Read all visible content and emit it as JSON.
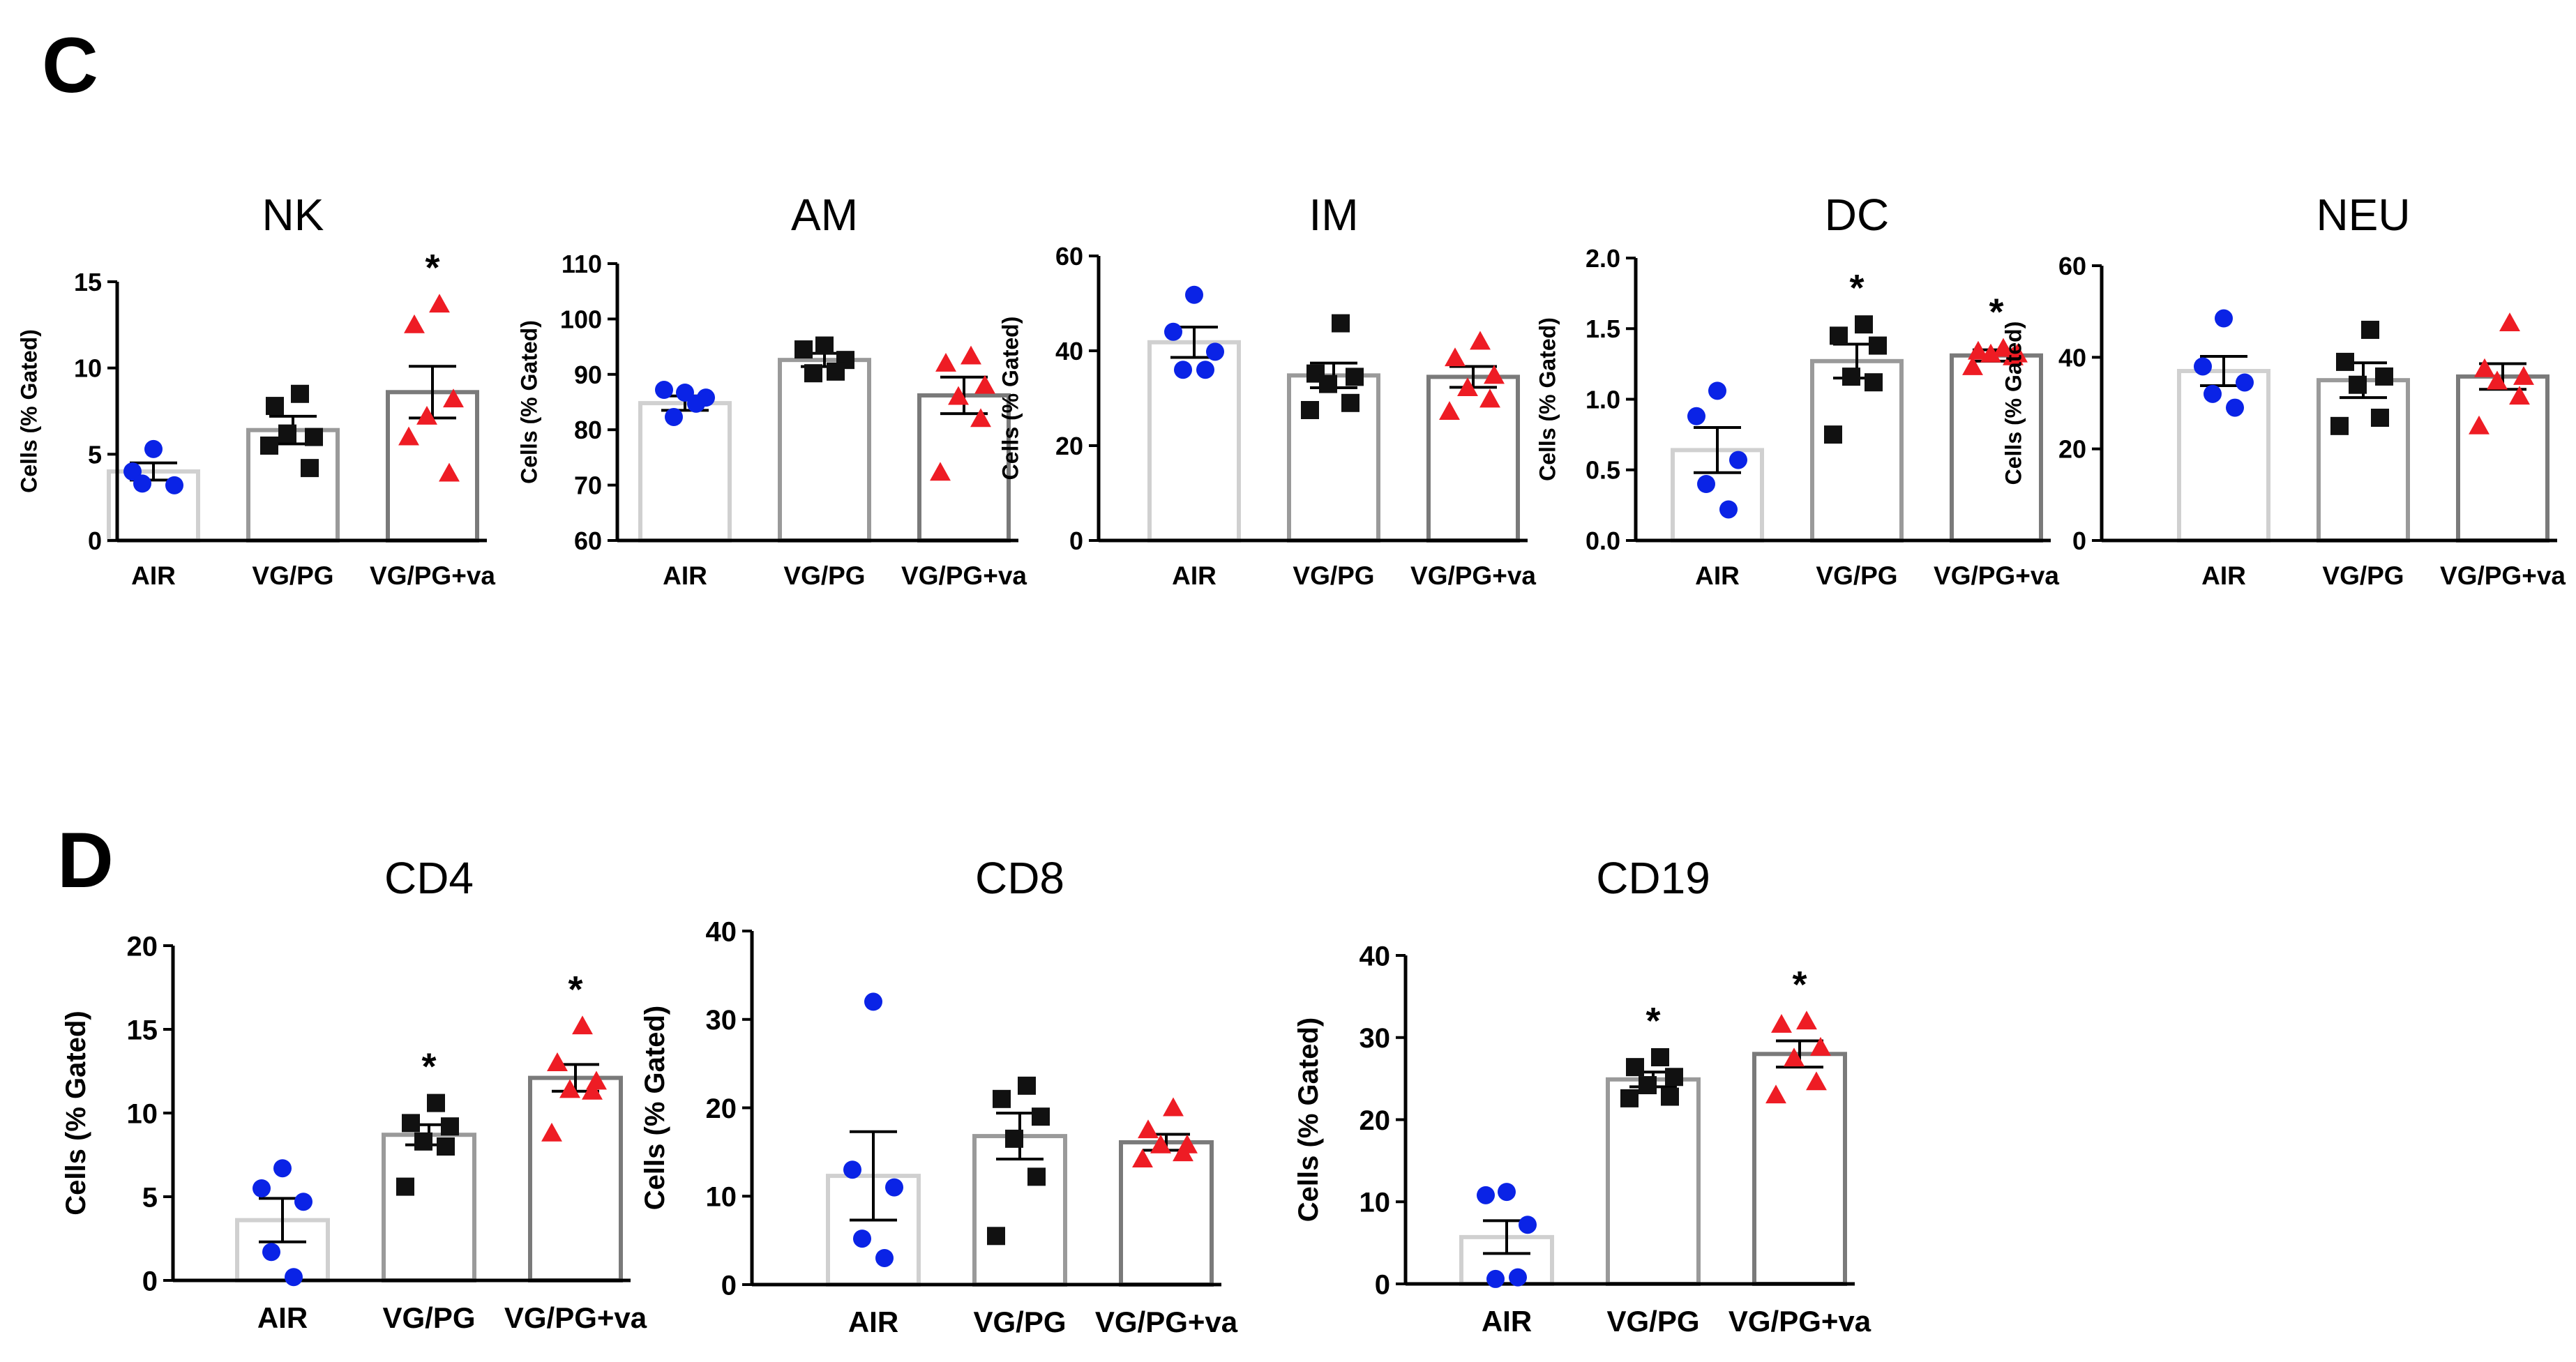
{
  "panels": [
    {
      "letter": "C"
    },
    {
      "letter": "D"
    }
  ],
  "chart_data": [
    {
      "panel": "C",
      "type": "bar",
      "title": "NK",
      "ylabel": "Cells (% Gated)",
      "categories": [
        "AIR",
        "VG/PG",
        "VG/PG+va"
      ],
      "ylim": [
        0,
        15
      ],
      "yticks": [
        0,
        5,
        10,
        15
      ],
      "means": [
        4.0,
        6.4,
        8.6
      ],
      "sem": [
        0.5,
        0.8,
        1.5
      ],
      "points": [
        [
          5.3,
          4.0,
          3.2,
          3.3
        ],
        [
          8.5,
          7.8,
          6.0,
          6.2,
          4.2,
          5.5
        ],
        [
          13.7,
          12.5,
          8.2,
          7.2,
          3.9,
          6.0
        ]
      ],
      "significance": [
        "",
        "",
        "*"
      ]
    },
    {
      "panel": "C",
      "type": "bar",
      "title": "AM",
      "ylabel": "Cells (% Gated)",
      "categories": [
        "AIR",
        "VG/PG",
        "VG/PG+va"
      ],
      "ylim": [
        60,
        110
      ],
      "yticks": [
        60,
        70,
        80,
        90,
        100,
        110
      ],
      "means": [
        84.8,
        92.6,
        86.2
      ],
      "sem": [
        1.3,
        1.2,
        3.3
      ],
      "points": [
        [
          86.7,
          87.2,
          85.8,
          82.3,
          84.7
        ],
        [
          95.2,
          94.5,
          92.6,
          90.2,
          90.5
        ],
        [
          93.3,
          92.0,
          88.0,
          86.0,
          82.0,
          72.3
        ]
      ],
      "significance": [
        "",
        "",
        ""
      ]
    },
    {
      "panel": "C",
      "type": "bar",
      "title": "IM",
      "ylabel": "Cells (% Gated)",
      "categories": [
        "AIR",
        "VG/PG",
        "VG/PG+va"
      ],
      "ylim": [
        0,
        60
      ],
      "yticks": [
        0,
        20,
        40,
        60
      ],
      "means": [
        41.8,
        34.8,
        34.5
      ],
      "sem": [
        3.2,
        2.6,
        2.2
      ],
      "points": [
        [
          51.8,
          44.0,
          39.8,
          36.0,
          36.0
        ],
        [
          45.8,
          35.2,
          34.5,
          33.0,
          29.0,
          27.5
        ],
        [
          42.0,
          38.5,
          34.8,
          32.2,
          29.8,
          27.2
        ]
      ],
      "significance": [
        "",
        "",
        ""
      ]
    },
    {
      "panel": "C",
      "type": "bar",
      "title": "DC",
      "ylabel": "Cells (% Gated)",
      "categories": [
        "AIR",
        "VG/PG",
        "VG/PG+va"
      ],
      "ylim": [
        0,
        2.0
      ],
      "yticks": [
        0.0,
        0.5,
        1.0,
        1.5,
        2.0
      ],
      "means": [
        0.64,
        1.27,
        1.31
      ],
      "sem": [
        0.16,
        0.12,
        0.04
      ],
      "points": [
        [
          1.06,
          0.88,
          0.57,
          0.4,
          0.22
        ],
        [
          1.53,
          1.45,
          1.38,
          1.16,
          1.12,
          0.75
        ],
        [
          1.36,
          1.34,
          1.32,
          1.32,
          1.3,
          1.23
        ]
      ],
      "significance": [
        "",
        "*",
        "*"
      ]
    },
    {
      "panel": "C",
      "type": "bar",
      "title": "NEU",
      "ylabel": "Cells (% Gated)",
      "categories": [
        "AIR",
        "VG/PG",
        "VG/PG+va"
      ],
      "ylim": [
        0,
        60
      ],
      "yticks": [
        0,
        20,
        40,
        60
      ],
      "means": [
        37.0,
        35.0,
        35.8
      ],
      "sem": [
        3.2,
        3.8,
        2.8
      ],
      "points": [
        [
          48.5,
          38.0,
          34.5,
          32.0,
          29.0
        ],
        [
          46.0,
          39.0,
          35.8,
          34.0,
          26.8,
          25.0
        ],
        [
          47.5,
          37.5,
          35.8,
          34.8,
          31.5,
          25.0
        ]
      ],
      "significance": [
        "",
        "",
        ""
      ]
    },
    {
      "panel": "D",
      "type": "bar",
      "title": "CD4",
      "ylabel": "Cells (% Gated)",
      "categories": [
        "AIR",
        "VG/PG",
        "VG/PG+va"
      ],
      "ylim": [
        0,
        20
      ],
      "yticks": [
        0,
        5,
        10,
        15,
        20
      ],
      "means": [
        3.6,
        8.7,
        12.1
      ],
      "sem": [
        1.3,
        0.6,
        0.8
      ],
      "points": [
        [
          6.7,
          5.5,
          4.7,
          1.7,
          0.2
        ],
        [
          10.6,
          9.4,
          9.2,
          8.3,
          8.0,
          5.6
        ],
        [
          15.2,
          13.0,
          11.9,
          11.4,
          11.3,
          8.8
        ]
      ],
      "significance": [
        "",
        "*",
        "*"
      ]
    },
    {
      "panel": "D",
      "type": "bar",
      "title": "CD8",
      "ylabel": "Cells (% Gated)",
      "categories": [
        "AIR",
        "VG/PG",
        "VG/PG+va"
      ],
      "ylim": [
        0,
        40
      ],
      "yticks": [
        0,
        10,
        20,
        30,
        40
      ],
      "means": [
        12.3,
        16.8,
        16.1
      ],
      "sem": [
        5.0,
        2.6,
        0.9
      ],
      "points": [
        [
          32.0,
          13.0,
          11.0,
          5.2,
          3.0
        ],
        [
          22.5,
          21.0,
          19.0,
          16.5,
          12.2,
          5.5
        ],
        [
          20.0,
          17.5,
          15.8,
          15.8,
          14.9,
          14.2
        ]
      ],
      "significance": [
        "",
        "",
        ""
      ]
    },
    {
      "panel": "D",
      "type": "bar",
      "title": "CD19",
      "ylabel": "Cells (% Gated)",
      "categories": [
        "AIR",
        "VG/PG",
        "VG/PG+va"
      ],
      "ylim": [
        0,
        40
      ],
      "yticks": [
        0,
        10,
        20,
        30,
        40
      ],
      "means": [
        5.7,
        24.9,
        28.0
      ],
      "sem": [
        2.0,
        0.9,
        1.6
      ],
      "points": [
        [
          11.2,
          10.8,
          7.2,
          0.6,
          0.8
        ],
        [
          27.6,
          26.4,
          25.2,
          24.2,
          22.8,
          22.6
        ],
        [
          32.0,
          31.6,
          28.8,
          27.5,
          24.6,
          23.0
        ]
      ],
      "significance": [
        "",
        "*",
        "*"
      ]
    }
  ],
  "group_colors": [
    "#0a23e6",
    "#111111",
    "#ee1c24"
  ],
  "bar_edge_colors": [
    "#d0d0d0",
    "#9a9a9a",
    "#7a7a7a"
  ],
  "group_markers": [
    "circle",
    "square",
    "triangle"
  ]
}
